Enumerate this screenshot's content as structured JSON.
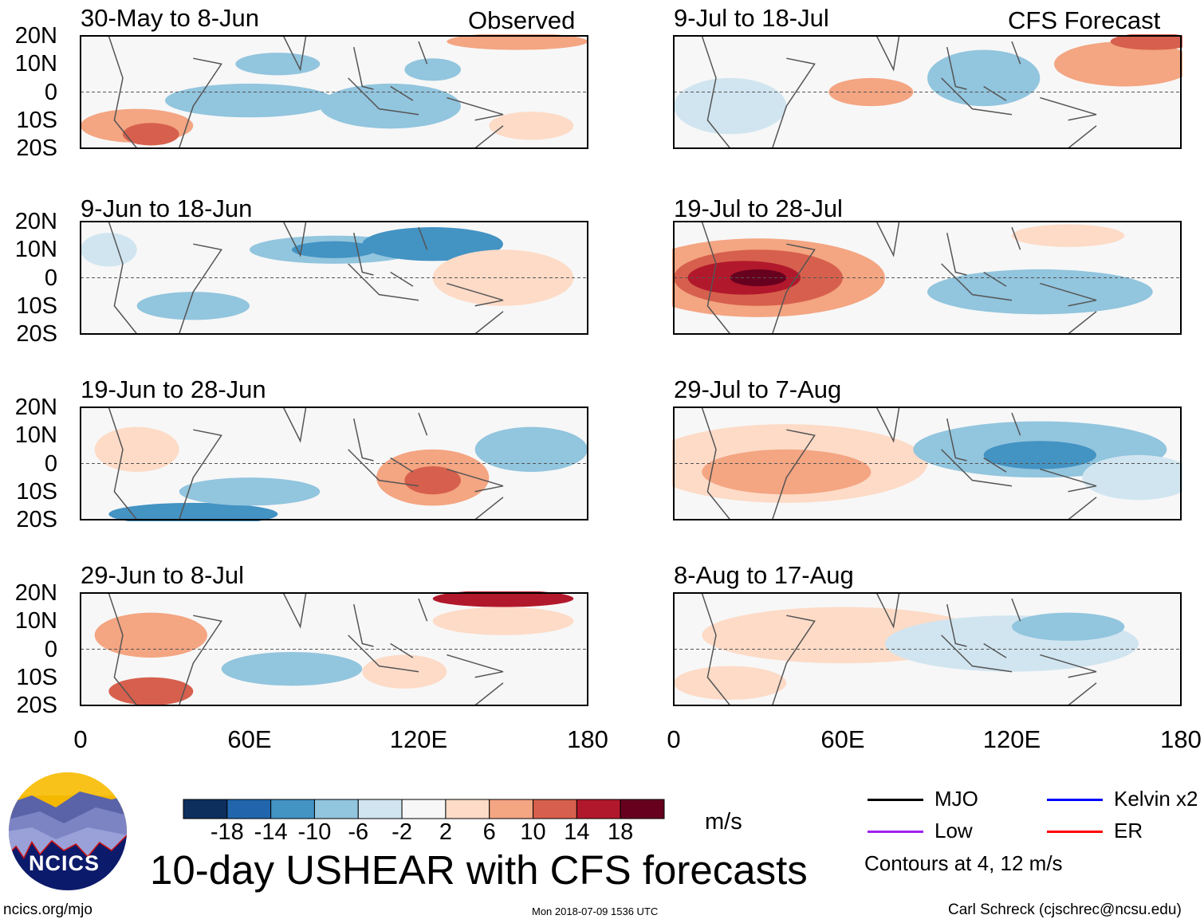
{
  "header": {
    "left_label": "Observed",
    "right_label": "CFS Forecast"
  },
  "panels_left": [
    {
      "title": "30-May to 8-Jun"
    },
    {
      "title": "9-Jun to 18-Jun"
    },
    {
      "title": "19-Jun to 28-Jun"
    },
    {
      "title": "29-Jun to 8-Jul"
    }
  ],
  "panels_right": [
    {
      "title": "9-Jul to 18-Jul"
    },
    {
      "title": "19-Jul to 28-Jul"
    },
    {
      "title": "29-Jul to 7-Aug"
    },
    {
      "title": "8-Aug to 17-Aug"
    }
  ],
  "lat_ticks": [
    "20N",
    "10N",
    "0",
    "10S",
    "20S"
  ],
  "lon_ticks": [
    "0",
    "60E",
    "120E",
    "180"
  ],
  "colorbar": {
    "colors": [
      "#0d2f5e",
      "#2166ac",
      "#4393c3",
      "#92c5de",
      "#d1e5f0",
      "#f7f7f7",
      "#fddbc7",
      "#f4a582",
      "#d6604d",
      "#b2182b",
      "#67001f"
    ],
    "labels": [
      "-18",
      "-14",
      "-10",
      "-6",
      "-2",
      "2",
      "6",
      "10",
      "14",
      "18"
    ],
    "units": "m/s"
  },
  "legend": {
    "items": [
      {
        "label": "MJO",
        "color": "#000000"
      },
      {
        "label": "Low",
        "color": "#a020f0"
      },
      {
        "label": "Kelvin x2",
        "color": "#0000ff"
      },
      {
        "label": "ER",
        "color": "#ff0000"
      }
    ],
    "note": "Contours at 4, 12 m/s"
  },
  "title": "10-day USHEAR with CFS forecasts",
  "logo_text": "NCICS",
  "footer": {
    "url": "ncics.org/mjo",
    "timestamp": "Mon 2018-07-09 1536 UTC",
    "credit": "Carl Schreck (cjschrec@ncsu.edu)"
  }
}
